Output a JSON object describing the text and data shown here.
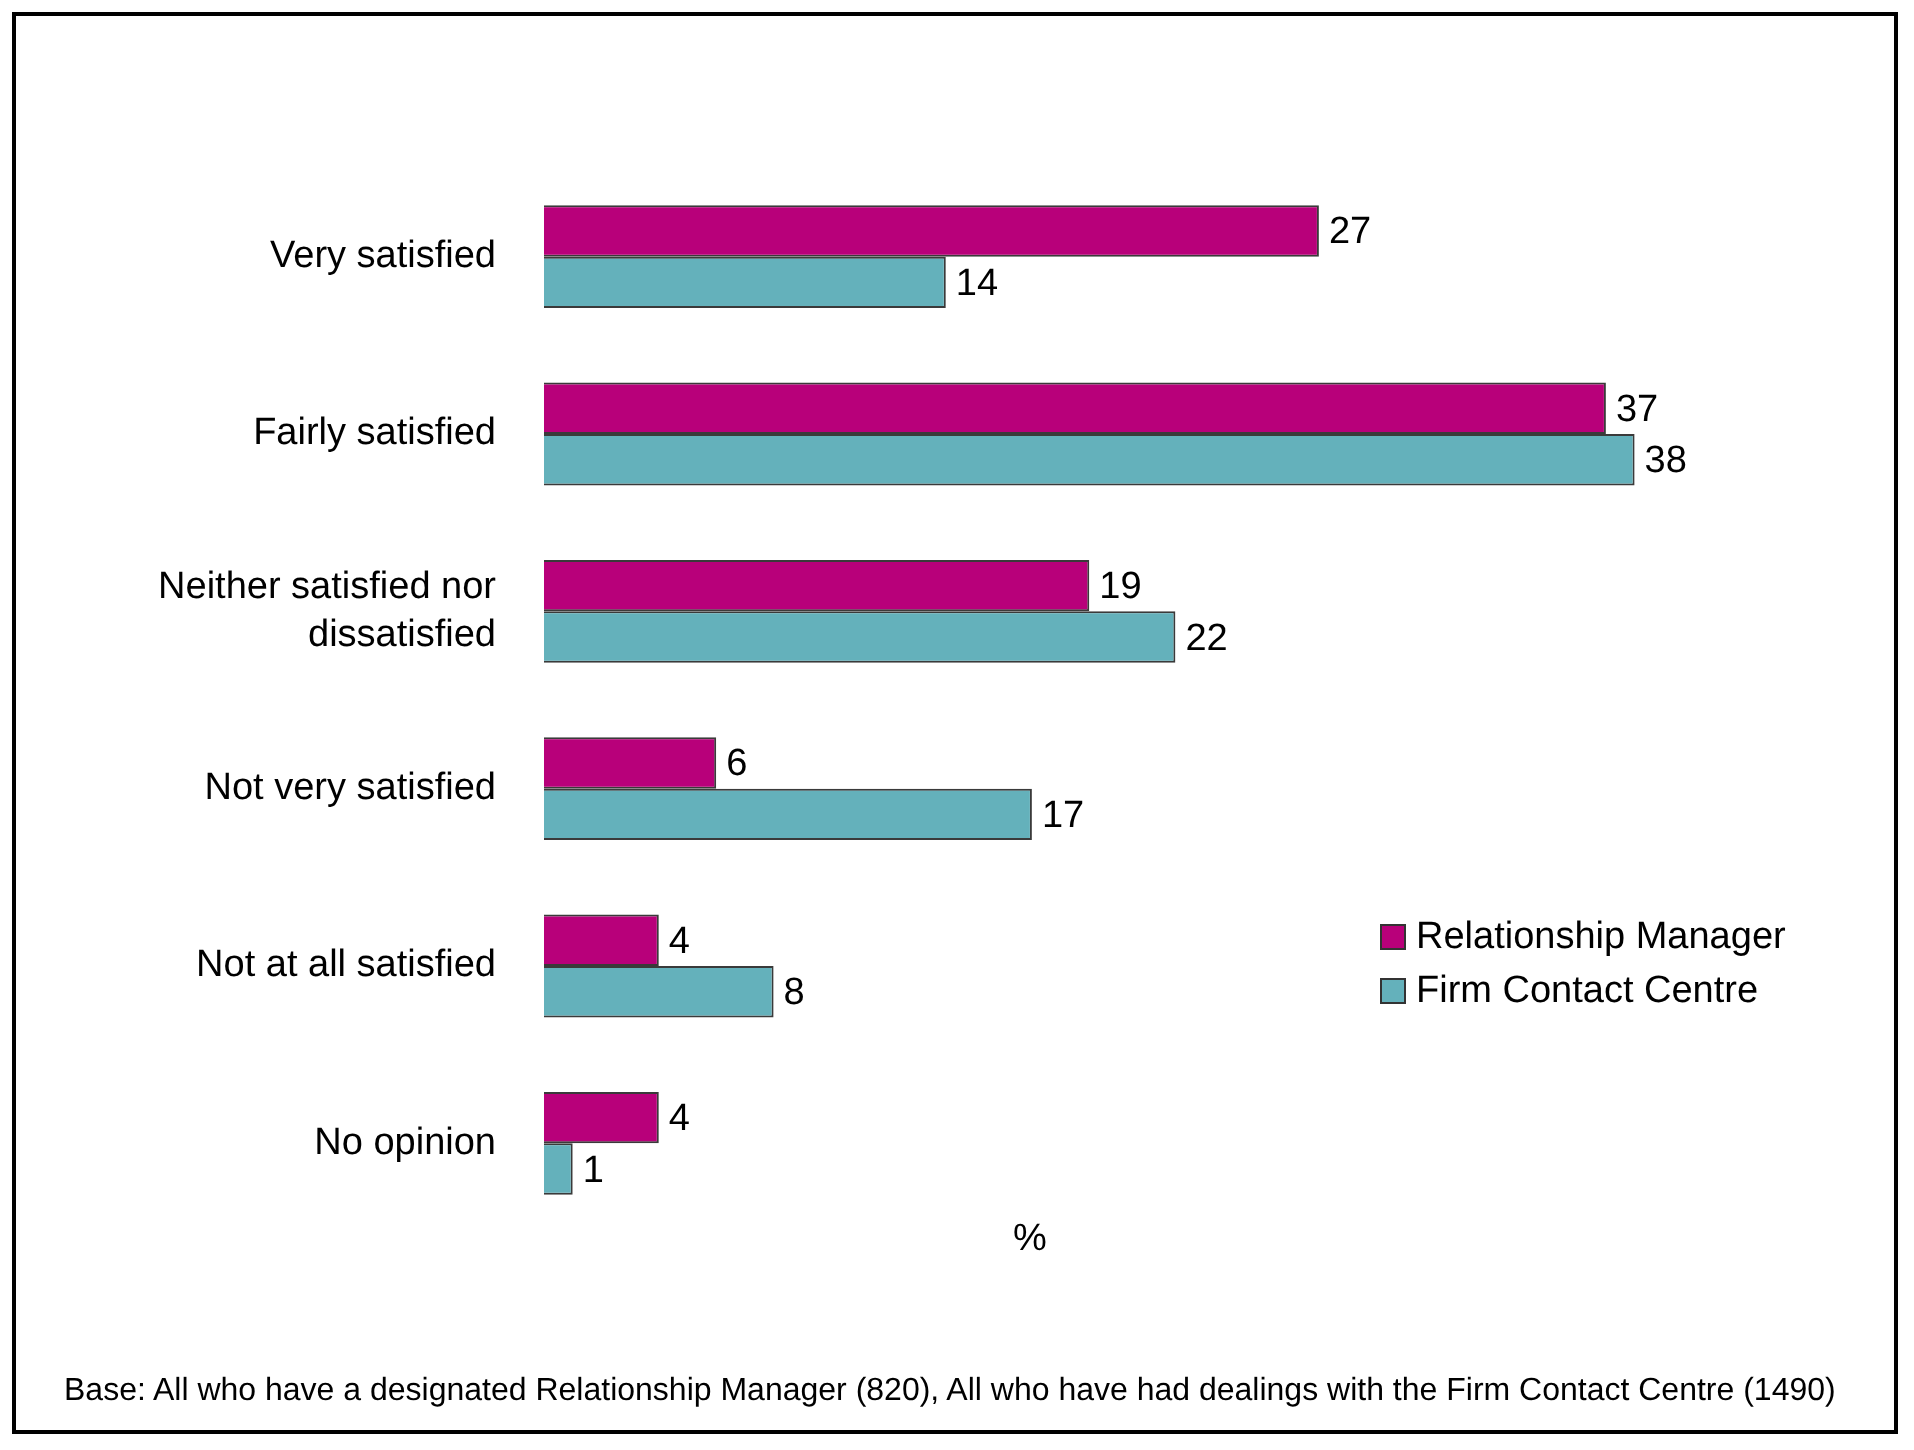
{
  "chart_data": {
    "type": "bar",
    "orientation": "horizontal",
    "categories": [
      "Very satisfied",
      "Fairly satisfied",
      "Neither satisfied nor dissatisfied",
      "Not very satisfied",
      "Not at all satisfied",
      "No opinion"
    ],
    "series": [
      {
        "name": "Relationship Manager",
        "color": "#b8007a",
        "values": [
          27,
          37,
          19,
          6,
          4,
          4
        ]
      },
      {
        "name": "Firm Contact Centre",
        "color": "#64b1bb",
        "values": [
          14,
          38,
          22,
          17,
          8,
          1
        ]
      }
    ],
    "xlabel": "%",
    "data_labels": true,
    "legend": "right",
    "tick_labels": "y",
    "annotations": [
      "Base: All who have a designated Relationship Manager (820), All who have had dealings with the Firm Contact Centre (1490)"
    ]
  }
}
